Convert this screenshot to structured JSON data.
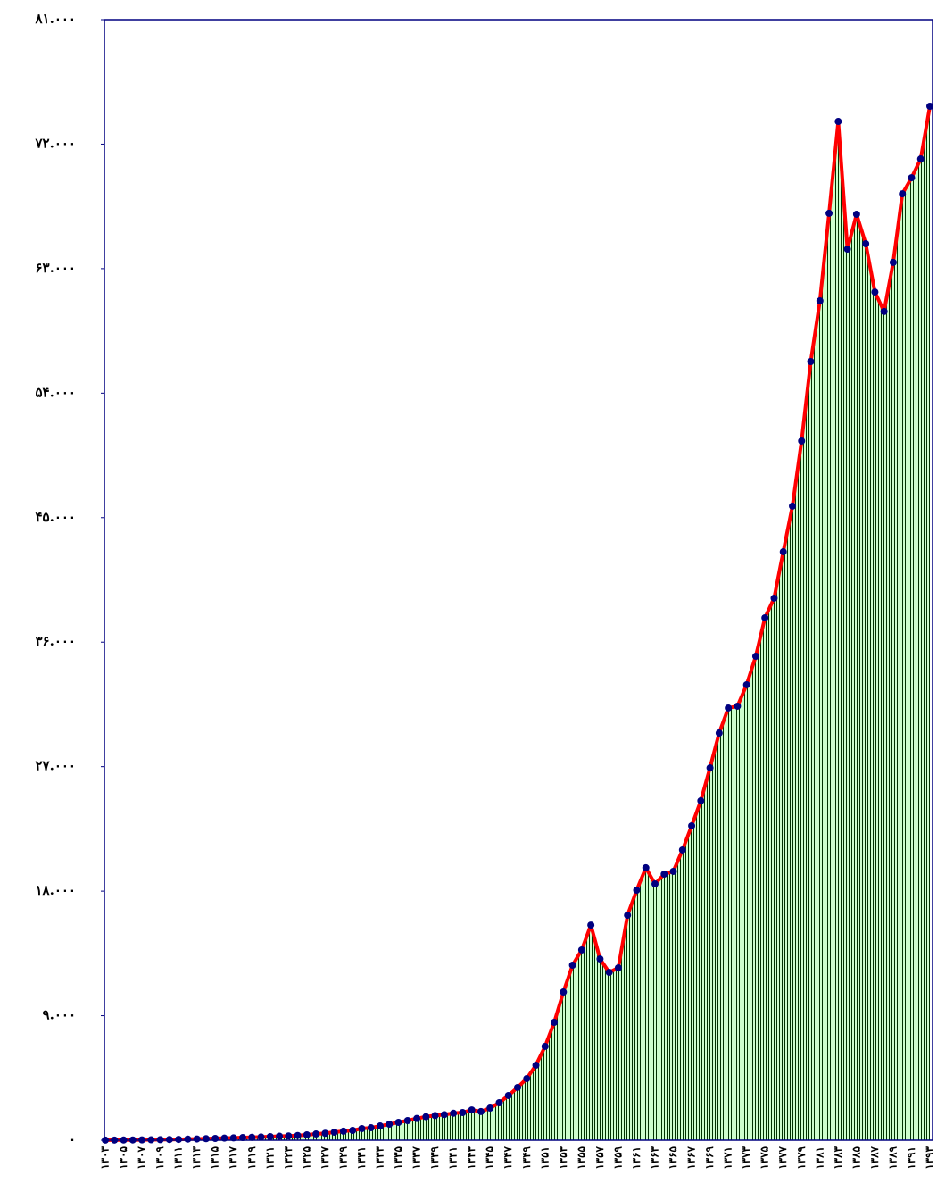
{
  "chart_data": {
    "type": "area",
    "categories": [
      "۱۳۰۳",
      null,
      "۱۳۰۵",
      null,
      "۱۳۰۷",
      null,
      "۱۳۰۹",
      null,
      "۱۳۱۱",
      null,
      "۱۳۱۳",
      null,
      "۱۳۱۵",
      null,
      "۱۳۱۷",
      null,
      "۱۳۱۹",
      null,
      "۱۳۲۱",
      null,
      "۱۳۲۳",
      null,
      "۱۳۲۵",
      null,
      "۱۳۲۷",
      null,
      "۱۳۲۹",
      null,
      "۱۳۳۱",
      null,
      "۱۳۳۳",
      null,
      "۱۳۳۵",
      null,
      "۱۳۳۷",
      null,
      "۱۳۳۹",
      null,
      "۱۳۴۱",
      null,
      "۱۳۴۳",
      null,
      "۱۳۴۵",
      null,
      "۱۳۴۷",
      null,
      "۱۳۴۹",
      null,
      "۱۳۵۱",
      null,
      "۱۳۵۳",
      null,
      "۱۳۵۵",
      null,
      "۱۳۵۷",
      null,
      "۱۳۵۹",
      null,
      "۱۳۶۱",
      null,
      "۱۳۶۳",
      null,
      "۱۳۶۵",
      null,
      "۱۳۶۷",
      null,
      "۱۳۶۹",
      null,
      "۱۳۷۱",
      null,
      "۱۳۷۳",
      null,
      "۱۳۷۵",
      null,
      "۱۳۷۷",
      null,
      "۱۳۷۹",
      null,
      "۱۳۸۱",
      null,
      "۱۳۸۳",
      null,
      "۱۳۸۵",
      null,
      "۱۳۸۷",
      null,
      "۱۳۸۹",
      null,
      "۱۳۹۱",
      null,
      "۱۳۹۳"
    ],
    "values": [
      5,
      10,
      15,
      20,
      25,
      30,
      40,
      50,
      60,
      80,
      90,
      110,
      130,
      150,
      170,
      190,
      210,
      230,
      260,
      290,
      310,
      340,
      390,
      450,
      500,
      580,
      650,
      710,
      840,
      900,
      1030,
      1160,
      1290,
      1420,
      1570,
      1700,
      1780,
      1850,
      1950,
      2000,
      2190,
      2070,
      2320,
      2710,
      3230,
      3810,
      4450,
      5420,
      6780,
      8520,
      10710,
      12650,
      13750,
      15550,
      13100,
      12130,
      12460,
      16260,
      18070,
      19690,
      18520,
      19230,
      19430,
      20980,
      22720,
      24530,
      26910,
      29430,
      31240,
      31370,
      32920,
      34980,
      37760,
      39180,
      42530,
      45830,
      50540,
      56280,
      60670,
      67000,
      73640,
      64410,
      66930,
      64800,
      61310,
      59900,
      63450,
      68410,
      69570,
      70930,
      74740
    ],
    "line_color": "#ff0000",
    "marker_color": "#000080",
    "fill_color": "#ccffcc",
    "hatch_color": "#003300",
    "frame_color": "#000080",
    "ylim": [
      0,
      81000
    ],
    "yticks": [
      {
        "value": 0,
        "label": "۰"
      },
      {
        "value": 9000,
        "label": "۹.۰۰۰"
      },
      {
        "value": 18000,
        "label": "۱۸.۰۰۰"
      },
      {
        "value": 27000,
        "label": "۲۷.۰۰۰"
      },
      {
        "value": 36000,
        "label": "۳۶.۰۰۰"
      },
      {
        "value": 45000,
        "label": "۴۵.۰۰۰"
      },
      {
        "value": 54000,
        "label": "۵۴.۰۰۰"
      },
      {
        "value": 63000,
        "label": "۶۳.۰۰۰"
      },
      {
        "value": 72000,
        "label": "۷۲.۰۰۰"
      },
      {
        "value": 81000,
        "label": "۸۱.۰۰۰"
      }
    ]
  }
}
